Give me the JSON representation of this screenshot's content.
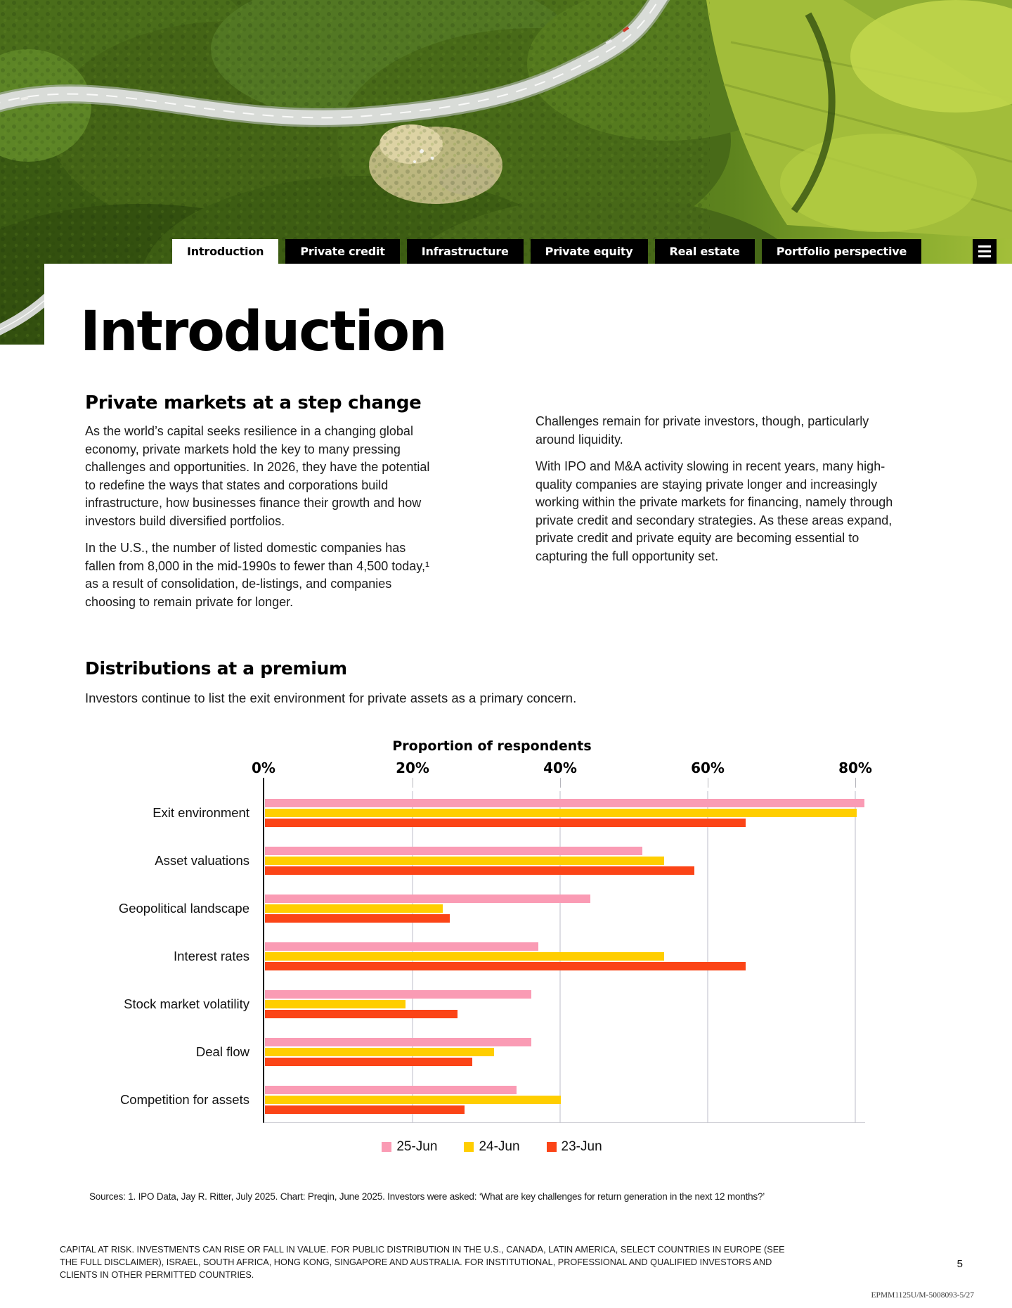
{
  "nav": {
    "tabs": [
      {
        "label": "Introduction",
        "active": true
      },
      {
        "label": "Private credit",
        "active": false
      },
      {
        "label": "Infrastructure",
        "active": false
      },
      {
        "label": "Private equity",
        "active": false
      },
      {
        "label": "Real estate",
        "active": false
      },
      {
        "label": "Portfolio perspective",
        "active": false
      }
    ]
  },
  "hero": {
    "description": "Aerial photo of a winding road through dense green forest with bright farm fields on the right"
  },
  "title": "Introduction",
  "intro": {
    "heading": "Private markets at a step change",
    "left_paragraphs": [
      "As the world’s capital seeks resilience in a changing global economy, private markets hold the key to many pressing challenges and opportunities. In 2026, they have the potential to redefine the ways that states and corporations build infrastructure, how businesses finance their growth and how investors build diversified portfolios.",
      "In the U.S., the number of listed domestic companies has fallen from 8,000 in the mid-1990s to fewer than 4,500 today,¹ as a result of consolidation, de-listings, and companies choosing to remain private for longer."
    ],
    "right_paragraphs": [
      "Challenges remain for private investors, though, particularly around liquidity.",
      "With IPO and M&A activity slowing in recent years, many high-quality companies are staying private longer and increasingly working within the private markets for financing, namely through private credit and secondary strategies. As these areas expand, private credit and private equity are becoming essential to capturing the full opportunity set."
    ]
  },
  "distributions": {
    "heading": "Distributions at a premium",
    "subtitle": "Investors continue to list the exit environment for private assets as a primary concern."
  },
  "chart_data": {
    "type": "bar",
    "orientation": "horizontal",
    "title": "Proportion of respondents",
    "categories": [
      "Exit environment",
      "Asset valuations",
      "Geopolitical landscape",
      "Interest rates",
      "Stock market volatility",
      "Deal flow",
      "Competition for assets"
    ],
    "series": [
      {
        "name": "25-Jun",
        "color": "#fa9bb4",
        "values": [
          81,
          51,
          44,
          37,
          36,
          36,
          34
        ]
      },
      {
        "name": "24-Jun",
        "color": "#ffce00",
        "values": [
          80,
          54,
          24,
          54,
          19,
          31,
          40
        ]
      },
      {
        "name": "23-Jun",
        "color": "#fb4417",
        "values": [
          65,
          58,
          25,
          65,
          26,
          28,
          27
        ]
      }
    ],
    "x_axis": {
      "ticks": [
        "0%",
        "20%",
        "40%",
        "60%",
        "80%"
      ],
      "min": 0,
      "max": 80,
      "unit": "%"
    },
    "grid": true,
    "legend_position": "bottom"
  },
  "sources": "Sources: 1. IPO Data, Jay R. Ritter, July 2025. Chart: Preqin, June 2025. Investors were asked: ‘What are key challenges for return generation in the next 12 months?’",
  "disclaimer": "CAPITAL AT RISK. INVESTMENTS CAN RISE OR FALL IN VALUE. FOR PUBLIC DISTRIBUTION IN THE U.S., CANADA, LATIN AMERICA, SELECT COUNTRIES IN EUROPE (SEE THE FULL DISCLAIMER), ISRAEL, SOUTH AFRICA, HONG KONG, SINGAPORE AND AUSTRALIA. FOR INSTITUTIONAL, PROFESSIONAL AND QUALIFIED INVESTORS AND CLIENTS IN OTHER PERMITTED COUNTRIES.",
  "page_number": "5",
  "footer_code": "EPMM1125U/M-5008093-5/27"
}
